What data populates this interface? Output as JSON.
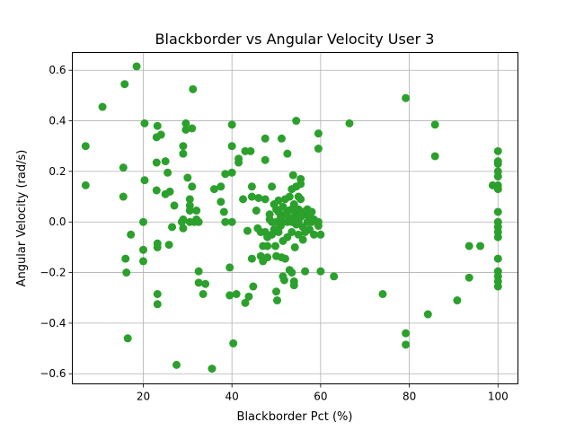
{
  "chart_data": {
    "type": "scatter",
    "title": "Blackborder vs Angular Velocity User 3",
    "xlabel": "Blackborder Pct (%)",
    "ylabel": "Angular Velocity (rad/s)",
    "xlim": [
      4,
      104.5
    ],
    "ylim": [
      -0.64,
      0.67
    ],
    "xticks": [
      20,
      40,
      60,
      80,
      100
    ],
    "yticks": [
      -0.6,
      -0.4,
      -0.2,
      0.0,
      0.2,
      0.4,
      0.6
    ],
    "xtick_labels": [
      "20",
      "40",
      "60",
      "80",
      "100"
    ],
    "ytick_labels": [
      "−0.6",
      "−0.4",
      "−0.2",
      "0.0",
      "0.2",
      "0.4",
      "0.6"
    ],
    "grid": true,
    "color": "#2ca02c",
    "series": [
      {
        "points": [
          [
            7,
            0.3
          ],
          [
            7,
            0.145
          ],
          [
            10.8,
            0.455
          ],
          [
            15.8,
            0.545
          ],
          [
            15.5,
            0.215
          ],
          [
            15.5,
            0.1
          ],
          [
            16,
            -0.145
          ],
          [
            16.2,
            -0.2
          ],
          [
            16.5,
            -0.46
          ],
          [
            17.2,
            -0.05
          ],
          [
            18.5,
            0.615
          ],
          [
            20,
            0.0
          ],
          [
            20,
            -0.11
          ],
          [
            20,
            -0.155
          ],
          [
            20.3,
            0.39
          ],
          [
            20.3,
            0.165
          ],
          [
            23,
            0.335
          ],
          [
            23,
            0.235
          ],
          [
            23,
            0.125
          ],
          [
            23.2,
            0.38
          ],
          [
            23.2,
            -0.085
          ],
          [
            23.2,
            -0.1
          ],
          [
            23.2,
            -0.285
          ],
          [
            23.2,
            -0.325
          ],
          [
            24,
            0.345
          ],
          [
            25,
            0.24
          ],
          [
            25,
            0.11
          ],
          [
            25.5,
            0.195
          ],
          [
            25.8,
            -0.09
          ],
          [
            26,
            0.12
          ],
          [
            26.5,
            -0.02
          ],
          [
            27,
            0.065
          ],
          [
            27.5,
            -0.565
          ],
          [
            28.7,
            0.0
          ],
          [
            29,
            0.3
          ],
          [
            29,
            0.27
          ],
          [
            29,
            0.01
          ],
          [
            29,
            -0.025
          ],
          [
            29.6,
            0.39
          ],
          [
            29.6,
            0.365
          ],
          [
            30,
            0.175
          ],
          [
            30.5,
            0.09
          ],
          [
            30.5,
            0.065
          ],
          [
            30.5,
            0.045
          ],
          [
            30.5,
            0.0
          ],
          [
            31,
            0.37
          ],
          [
            31,
            0.14
          ],
          [
            31.2,
            0.525
          ],
          [
            31.5,
            0.0
          ],
          [
            32,
            0.045
          ],
          [
            32,
            0.01
          ],
          [
            32.5,
            0.0
          ],
          [
            32.5,
            -0.195
          ],
          [
            32.5,
            -0.24
          ],
          [
            33.5,
            -0.285
          ],
          [
            34,
            -0.245
          ],
          [
            35.5,
            -0.58
          ],
          [
            36,
            0.13
          ],
          [
            37.5,
            0.14
          ],
          [
            37.5,
            0.08
          ],
          [
            38.2,
            0.04
          ],
          [
            38.5,
            0.19
          ],
          [
            38.5,
            0.0
          ],
          [
            39.5,
            -0.18
          ],
          [
            39.5,
            -0.29
          ],
          [
            40,
            0.3
          ],
          [
            40,
            0.385
          ],
          [
            40,
            0.195
          ],
          [
            40,
            0.0
          ],
          [
            40.3,
            -0.48
          ],
          [
            41,
            -0.285
          ],
          [
            41.5,
            0.25
          ],
          [
            41.5,
            0.235
          ],
          [
            42.5,
            0.09
          ],
          [
            43,
            0.28
          ],
          [
            43,
            -0.32
          ],
          [
            43.5,
            -0.035
          ],
          [
            43.8,
            -0.295
          ],
          [
            44.2,
            0.28
          ],
          [
            44.5,
            0.14
          ],
          [
            44.5,
            0.1
          ],
          [
            44.5,
            -0.145
          ],
          [
            44.8,
            -0.255
          ],
          [
            45.5,
            0.045
          ],
          [
            45.8,
            -0.025
          ],
          [
            46,
            0.095
          ],
          [
            46.5,
            -0.04
          ],
          [
            46.5,
            -0.135
          ],
          [
            47,
            -0.095
          ],
          [
            47,
            -0.155
          ],
          [
            47.5,
            0.33
          ],
          [
            47.5,
            0.245
          ],
          [
            47.5,
            0.09
          ],
          [
            47.5,
            -0.04
          ],
          [
            48,
            -0.06
          ],
          [
            48,
            -0.095
          ],
          [
            48,
            -0.14
          ],
          [
            48.5,
            0.03
          ],
          [
            48.5,
            0.01
          ],
          [
            49,
            0.14
          ],
          [
            49,
            0.0
          ],
          [
            49,
            -0.05
          ],
          [
            49.5,
            0.07
          ],
          [
            49.5,
            -0.03
          ],
          [
            49.8,
            -0.095
          ],
          [
            50,
            0.05
          ],
          [
            50,
            0.0
          ],
          [
            50,
            -0.135
          ],
          [
            50,
            -0.275
          ],
          [
            50.2,
            -0.31
          ],
          [
            50.5,
            0.085
          ],
          [
            50.5,
            0.04
          ],
          [
            50.5,
            -0.04
          ],
          [
            51,
            0.02
          ],
          [
            51,
            -0.015
          ],
          [
            51.2,
            0.33
          ],
          [
            51.2,
            -0.14
          ],
          [
            51.5,
            0.06
          ],
          [
            51.5,
            0.0
          ],
          [
            51.5,
            -0.075
          ],
          [
            51.5,
            -0.215
          ],
          [
            51.8,
            -0.23
          ],
          [
            52,
            0.09
          ],
          [
            52,
            0.03
          ],
          [
            52,
            -0.145
          ],
          [
            52.5,
            0.27
          ],
          [
            52.5,
            0.0
          ],
          [
            52.5,
            -0.06
          ],
          [
            52.8,
            0.045
          ],
          [
            53,
            0.1
          ],
          [
            53,
            0.015
          ],
          [
            53,
            -0.19
          ],
          [
            53.5,
            0.13
          ],
          [
            53.5,
            0.05
          ],
          [
            53.5,
            0.0
          ],
          [
            53.5,
            -0.04
          ],
          [
            53.5,
            -0.2
          ],
          [
            53.8,
            0.185
          ],
          [
            54,
            0.07
          ],
          [
            54,
            0.02
          ],
          [
            54,
            -0.235
          ],
          [
            54,
            -0.25
          ],
          [
            54.2,
            -0.1
          ],
          [
            54.5,
            0.4
          ],
          [
            54.5,
            0.14
          ],
          [
            54.5,
            0.03
          ],
          [
            54.5,
            -0.01
          ],
          [
            55,
            0.1
          ],
          [
            55,
            0.05
          ],
          [
            55,
            0.0
          ],
          [
            55,
            -0.05
          ],
          [
            55.5,
            0.17
          ],
          [
            55.5,
            0.15
          ],
          [
            55.5,
            0.09
          ],
          [
            55.5,
            0.02
          ],
          [
            56,
            0.04
          ],
          [
            56,
            -0.02
          ],
          [
            56,
            -0.07
          ],
          [
            56.5,
            0.03
          ],
          [
            56.5,
            -0.04
          ],
          [
            56.5,
            -0.195
          ],
          [
            57,
            0.05
          ],
          [
            57,
            0.0
          ],
          [
            57.5,
            0.02
          ],
          [
            57.5,
            -0.03
          ],
          [
            58,
            0.04
          ],
          [
            58,
            0.0
          ],
          [
            58.5,
            0.01
          ],
          [
            58.5,
            -0.05
          ],
          [
            59.5,
            0.35
          ],
          [
            59.5,
            0.29
          ],
          [
            59.5,
            0.0
          ],
          [
            59.5,
            -0.015
          ],
          [
            60,
            -0.05
          ],
          [
            60,
            -0.195
          ],
          [
            63,
            -0.215
          ],
          [
            66.5,
            0.39
          ],
          [
            74,
            -0.285
          ],
          [
            79.2,
            0.49
          ],
          [
            79.2,
            -0.44
          ],
          [
            79.2,
            -0.485
          ],
          [
            84.2,
            -0.365
          ],
          [
            85.8,
            0.385
          ],
          [
            85.8,
            0.26
          ],
          [
            90.8,
            -0.31
          ],
          [
            93.5,
            -0.095
          ],
          [
            93.5,
            -0.22
          ],
          [
            96,
            -0.095
          ],
          [
            98.8,
            0.145
          ],
          [
            100,
            0.28
          ],
          [
            100,
            0.24
          ],
          [
            100,
            0.23
          ],
          [
            100,
            0.2
          ],
          [
            100,
            0.18
          ],
          [
            100,
            0.145
          ],
          [
            100,
            0.13
          ],
          [
            100,
            0.04
          ],
          [
            100,
            0.0
          ],
          [
            100,
            -0.02
          ],
          [
            100,
            -0.04
          ],
          [
            100,
            -0.06
          ],
          [
            100,
            -0.145
          ],
          [
            100,
            -0.195
          ],
          [
            100,
            -0.215
          ],
          [
            100,
            -0.235
          ],
          [
            100,
            -0.255
          ]
        ]
      }
    ]
  }
}
